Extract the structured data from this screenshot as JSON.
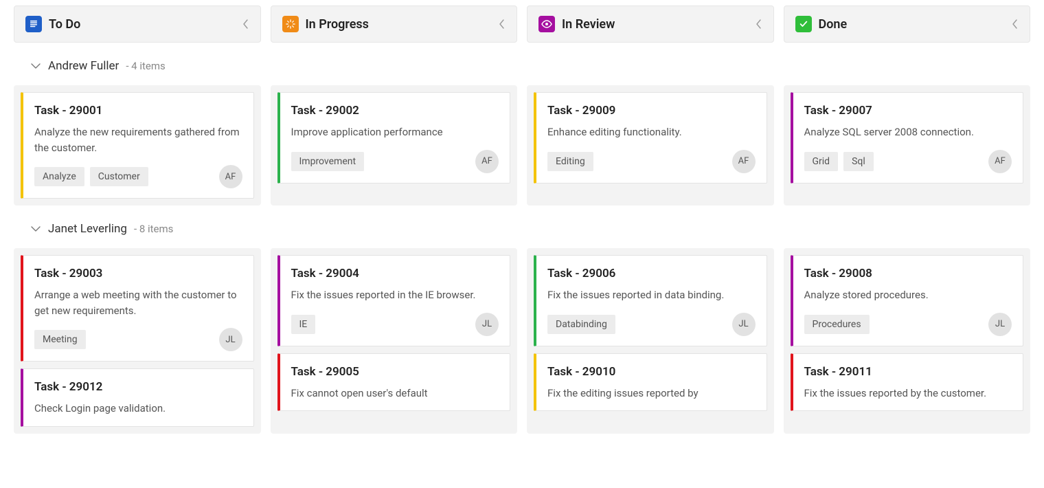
{
  "columns": [
    {
      "key": "todo",
      "title": "To Do",
      "icon_bg": "#1f5fc8",
      "icon": "doc"
    },
    {
      "key": "inprogress",
      "title": "In Progress",
      "icon_bg": "#f08b17",
      "icon": "spinner"
    },
    {
      "key": "inreview",
      "title": "In Review",
      "icon_bg": "#a50fa0",
      "icon": "eye"
    },
    {
      "key": "done",
      "title": "Done",
      "icon_bg": "#2fbe3a",
      "icon": "check"
    }
  ],
  "swimlanes": [
    {
      "name": "Andrew Fuller",
      "count_label": "- 4 items",
      "avatar": "AF",
      "cells": {
        "todo": [
          {
            "id": "Task - 29001",
            "desc": "Analyze the new requirements gathered from the customer.",
            "tags": [
              "Analyze",
              "Customer"
            ],
            "stripe": "#f4c300"
          }
        ],
        "inprogress": [
          {
            "id": "Task - 29002",
            "desc": "Improve application performance",
            "tags": [
              "Improvement"
            ],
            "stripe": "#2bb24c"
          }
        ],
        "inreview": [
          {
            "id": "Task - 29009",
            "desc": "Enhance editing functionality.",
            "tags": [
              "Editing"
            ],
            "stripe": "#f4c300"
          }
        ],
        "done": [
          {
            "id": "Task - 29007",
            "desc": "Analyze SQL server 2008 connection.",
            "tags": [
              "Grid",
              "Sql"
            ],
            "stripe": "#a50fa0"
          }
        ]
      }
    },
    {
      "name": "Janet Leverling",
      "count_label": "- 8 items",
      "avatar": "JL",
      "cells": {
        "todo": [
          {
            "id": "Task - 29003",
            "desc": "Arrange a web meeting with the customer to get new requirements.",
            "tags": [
              "Meeting"
            ],
            "stripe": "#e1141c"
          },
          {
            "id": "Task - 29012",
            "desc": "Check Login page validation.",
            "tags": [],
            "stripe": "#a50fa0",
            "partial": true
          }
        ],
        "inprogress": [
          {
            "id": "Task - 29004",
            "desc": "Fix the issues reported in the IE browser.",
            "tags": [
              "IE"
            ],
            "stripe": "#a50fa0"
          },
          {
            "id": "Task - 29005",
            "desc": "Fix cannot open user's default",
            "tags": [],
            "stripe": "#e1141c",
            "partial": true
          }
        ],
        "inreview": [
          {
            "id": "Task - 29006",
            "desc": "Fix the issues reported in data binding.",
            "tags": [
              "Databinding"
            ],
            "stripe": "#2bb24c"
          },
          {
            "id": "Task - 29010",
            "desc": "Fix the editing issues reported by",
            "tags": [],
            "stripe": "#f4c300",
            "partial": true
          }
        ],
        "done": [
          {
            "id": "Task - 29008",
            "desc": "Analyze stored procedures.",
            "tags": [
              "Procedures"
            ],
            "stripe": "#a50fa0"
          },
          {
            "id": "Task - 29011",
            "desc": "Fix the issues reported by the customer.",
            "tags": [],
            "stripe": "#e1141c",
            "partial": true
          }
        ]
      }
    }
  ]
}
